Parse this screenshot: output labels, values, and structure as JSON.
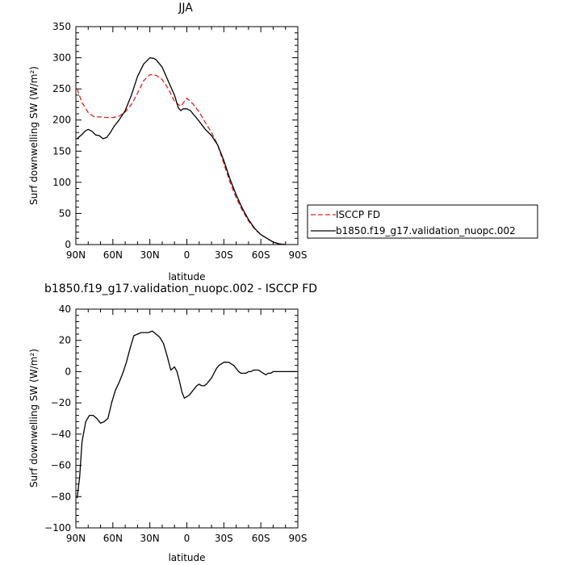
{
  "chart_data": [
    {
      "type": "line",
      "title": "JJA",
      "xlabel": "latitude",
      "ylabel": "Surf downwelling SW (W/m²)",
      "xlim": [
        90,
        -90
      ],
      "ylim": [
        0,
        350
      ],
      "xticks": [
        90,
        60,
        30,
        0,
        -30,
        -60,
        -90
      ],
      "xtick_labels": [
        "90N",
        "60N",
        "30N",
        "0",
        "30S",
        "60S",
        "90S"
      ],
      "yticks": [
        0,
        50,
        100,
        150,
        200,
        250,
        300,
        350
      ],
      "ytick_labels": [
        "0",
        "50",
        "100",
        "150",
        "200",
        "250",
        "300",
        "350"
      ],
      "grid": false,
      "legend_position": "right",
      "series": [
        {
          "name": "ISCCP FD",
          "color": "#e0211d",
          "dash": "dashed",
          "x": [
            89,
            85,
            80,
            75,
            70,
            65,
            60,
            55,
            50,
            45,
            40,
            35,
            30,
            25,
            20,
            15,
            10,
            5,
            0,
            -5,
            -10,
            -15,
            -20,
            -25,
            -30,
            -35,
            -40,
            -45,
            -50,
            -55,
            -60,
            -65,
            -70,
            -75,
            -80
          ],
          "y": [
            250,
            228,
            212,
            205,
            205,
            204,
            204,
            206,
            213,
            225,
            243,
            263,
            273,
            272,
            265,
            250,
            230,
            222,
            235,
            226,
            213,
            196,
            180,
            160,
            130,
            100,
            75,
            55,
            38,
            25,
            16,
            10,
            4,
            1,
            0
          ]
        },
        {
          "name": "b1850.f19_g17.validation_nuopc.002",
          "color": "#000000",
          "dash": "solid",
          "x": [
            89,
            85,
            82,
            80,
            77,
            74,
            71,
            68,
            65,
            62,
            59,
            55,
            50,
            45,
            40,
            35,
            30,
            27,
            25,
            20,
            15,
            10,
            7,
            5,
            3,
            0,
            -3,
            -5,
            -8,
            -10,
            -15,
            -20,
            -25,
            -30,
            -35,
            -40,
            -45,
            -50,
            -55,
            -60,
            -65,
            -70,
            -75,
            -80
          ],
          "y": [
            170,
            177,
            183,
            185,
            182,
            176,
            175,
            170,
            172,
            180,
            190,
            200,
            215,
            240,
            270,
            290,
            300,
            299,
            297,
            285,
            262,
            240,
            220,
            215,
            218,
            218,
            215,
            210,
            203,
            198,
            185,
            175,
            160,
            135,
            105,
            80,
            58,
            40,
            26,
            16,
            10,
            4,
            1,
            0
          ]
        }
      ]
    },
    {
      "type": "line",
      "title": "b1850.f19_g17.validation_nuopc.002 - ISCCP FD",
      "xlabel": "latitude",
      "ylabel": "Surf downwelling SW (W/m²)",
      "xlim": [
        90,
        -90
      ],
      "ylim": [
        -100,
        40
      ],
      "xticks": [
        90,
        60,
        30,
        0,
        -30,
        -60,
        -90
      ],
      "xtick_labels": [
        "90N",
        "60N",
        "30N",
        "0",
        "30S",
        "60S",
        "90S"
      ],
      "yticks": [
        -100,
        -80,
        -60,
        -40,
        -20,
        0,
        20,
        40
      ],
      "ytick_labels": [
        "−100",
        "−80",
        "−60",
        "−40",
        "−20",
        "0",
        "20",
        "40"
      ],
      "grid": false,
      "series": [
        {
          "color": "#000000",
          "dash": "solid",
          "x": [
            89,
            87,
            85,
            82,
            79,
            76,
            73,
            70,
            67,
            64,
            61,
            58,
            55,
            52,
            49,
            46,
            43,
            40,
            37,
            34,
            31,
            28,
            25,
            22,
            19,
            16,
            13,
            10,
            8,
            6,
            4,
            2,
            0,
            -2,
            -4,
            -6,
            -8,
            -10,
            -12,
            -14,
            -16,
            -18,
            -20,
            -22,
            -24,
            -26,
            -28,
            -30,
            -32,
            -34,
            -36,
            -38,
            -40,
            -42,
            -44,
            -46,
            -48,
            -50,
            -52,
            -54,
            -56,
            -58,
            -60,
            -62,
            -64,
            -66,
            -68,
            -70,
            -72,
            -74,
            -76,
            -78,
            -80,
            -85,
            -89
          ],
          "y": [
            -81,
            -68,
            -45,
            -32,
            -28,
            -28,
            -30,
            -33,
            -32,
            -30,
            -20,
            -12,
            -7,
            -1,
            6,
            15,
            23,
            24,
            25,
            25,
            25,
            26,
            24,
            22,
            18,
            10,
            1,
            3,
            0,
            -6,
            -13,
            -17,
            -16,
            -15,
            -13,
            -11,
            -9,
            -8,
            -9,
            -9,
            -8,
            -6,
            -4,
            -1,
            2,
            4,
            5,
            6,
            6,
            6,
            5,
            4,
            2,
            0,
            -1,
            -1,
            -1,
            0,
            0,
            1,
            1,
            1,
            0,
            -1,
            -2,
            -1,
            -1,
            0,
            0,
            0,
            0,
            0,
            0,
            0,
            0
          ]
        }
      ]
    }
  ]
}
